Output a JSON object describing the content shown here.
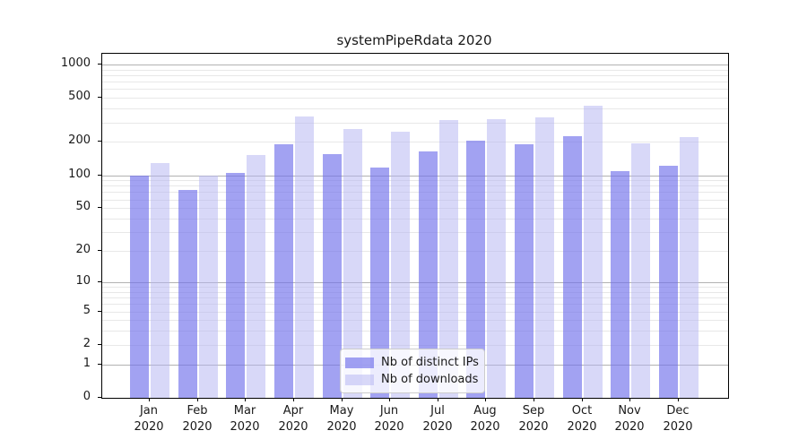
{
  "chart_data": {
    "type": "bar",
    "title": "systemPipeRdata 2020",
    "scale": "log1p",
    "grid": "horizontal",
    "legend_position": "lower center",
    "categories": [
      "Jan",
      "Feb",
      "Mar",
      "Apr",
      "May",
      "Jun",
      "Jul",
      "Aug",
      "Sep",
      "Oct",
      "Nov",
      "Dec"
    ],
    "category_year": "2020",
    "series": [
      {
        "name": "Nb of distinct IPs",
        "color": "rgba(112,112,235,0.65)",
        "values": [
          99,
          74,
          104,
          190,
          155,
          117,
          163,
          207,
          190,
          227,
          108,
          122
        ]
      },
      {
        "name": "Nb of downloads",
        "color": "rgba(177,177,241,0.5)",
        "values": [
          128,
          99,
          151,
          340,
          262,
          249,
          318,
          324,
          335,
          427,
          196,
          223
        ]
      }
    ],
    "y_ticks": [
      0,
      1,
      2,
      5,
      10,
      20,
      50,
      100,
      200,
      500,
      1000
    ],
    "y_major_gridlines": [
      1,
      10,
      100,
      1000
    ],
    "ylim": [
      0,
      1250
    ],
    "xlabel": "",
    "ylabel": "",
    "colors": {
      "major_grid": "#b2b2b2",
      "minor_grid": "#e8e8e8",
      "axis": "#000000",
      "text": "#191919",
      "legend_border": "#cccccc",
      "legend_bg": "rgba(255,255,255,0.8)"
    }
  }
}
